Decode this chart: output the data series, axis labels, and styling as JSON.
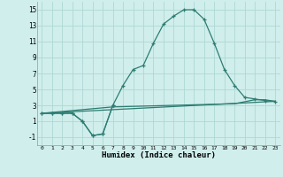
{
  "xlabel": "Humidex (Indice chaleur)",
  "bg_color": "#d0eeec",
  "grid_color": "#aed8d4",
  "line_color": "#2e7d72",
  "xlim": [
    -0.5,
    23.5
  ],
  "ylim": [
    -2,
    16
  ],
  "xticks": [
    0,
    1,
    2,
    3,
    4,
    5,
    6,
    7,
    8,
    9,
    10,
    11,
    12,
    13,
    14,
    15,
    16,
    17,
    18,
    19,
    20,
    21,
    22,
    23
  ],
  "yticks": [
    -1,
    1,
    3,
    5,
    7,
    9,
    11,
    13,
    15
  ],
  "line1_x": [
    0,
    1,
    2,
    3,
    4,
    5,
    6,
    7,
    8,
    9,
    10,
    11,
    12,
    13,
    14,
    15,
    16,
    17,
    18,
    19,
    20,
    21,
    22,
    23
  ],
  "line1_y": [
    2,
    2,
    2,
    2,
    1,
    -0.8,
    -0.6,
    3.0,
    5.5,
    7.5,
    8.0,
    10.8,
    13.2,
    14.2,
    15.0,
    15.0,
    13.8,
    10.8,
    7.5,
    5.5,
    4.0,
    3.8,
    3.6,
    3.5
  ],
  "line2_x": [
    0,
    1,
    2,
    3,
    4,
    5,
    6,
    7
  ],
  "line2_y": [
    2,
    2,
    2,
    2,
    1,
    -0.8,
    -0.6,
    3.0
  ],
  "line3_x": [
    0,
    7,
    19,
    21,
    22,
    23
  ],
  "line3_y": [
    2,
    2.8,
    3.2,
    3.7,
    3.7,
    3.5
  ],
  "line4_x": [
    0,
    23
  ],
  "line4_y": [
    2,
    3.5
  ]
}
